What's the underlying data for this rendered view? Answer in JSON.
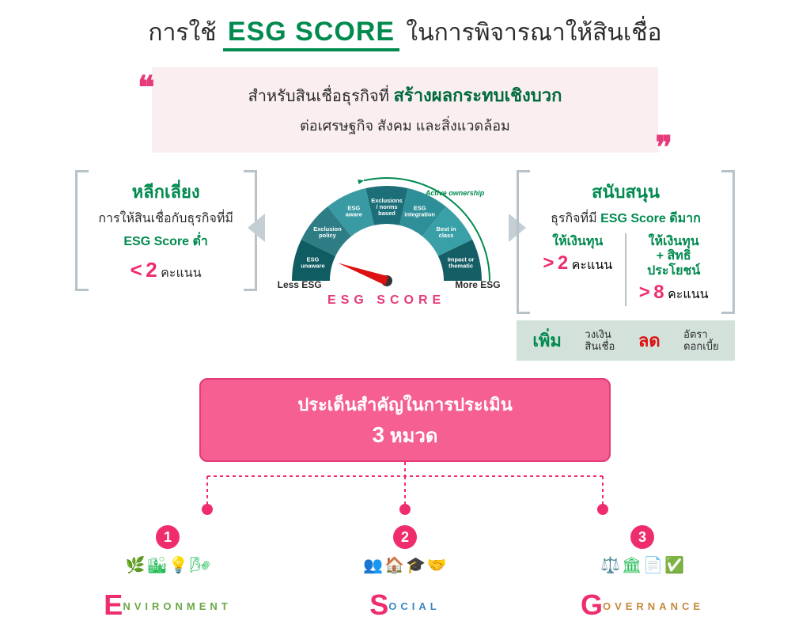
{
  "header": {
    "pre": "การใช้",
    "esg": "ESG SCORE",
    "post": "ในการพิจารณาให้สินเชื่อ",
    "esg_color": "#008a4e",
    "text_color": "#2b2b2b"
  },
  "quote": {
    "bg": "#fbeef0",
    "quote_color": "#e53b7a",
    "line1_pre": "สำหรับสินเชื่อธุรกิจที่",
    "line1_em": "สร้างผลกระทบเชิงบวก",
    "line2": "ต่อเศรษฐกิจ สังคม และสิ่งแวดล้อม"
  },
  "avoid_box": {
    "title": "หลีกเลี่ยง",
    "sub": "การให้สินเชื่อกับธุรกิจที่มี",
    "sub2": "ESG Score ต่ำ",
    "op": "<",
    "num": "2",
    "unit": "คะแนน"
  },
  "support_box": {
    "title": "สนับสนุน",
    "sub_pre": "ธุรกิจที่มี",
    "sub_em": "ESG Score ดีมาก",
    "col1_lbl": "ให้เงินทุน",
    "col1_op": ">",
    "col1_num": "2",
    "col1_unit": "คะแนน",
    "col2_lbl1": "ให้เงินทุน",
    "col2_lbl2": "+ สิทธิประโยชน์",
    "col2_op": ">",
    "col2_num": "8",
    "col2_unit": "คะแนน",
    "benefit": {
      "bg": "#d2e2db",
      "w1": "เพิ่ม",
      "w1_sub1": "วงเงิน",
      "w1_sub2": "สินเชื่อ",
      "w2": "ลด",
      "w2_sub1": "อัตรา",
      "w2_sub2": "ดอกเบี้ย"
    }
  },
  "gauge": {
    "caption": "ESG SCORE",
    "low_label": "Less ESG",
    "high_label": "More ESG",
    "active_label": "Active ownership",
    "needle_angle_deg": 20,
    "needle_color": "#d11",
    "segments": [
      {
        "label1": "ESG",
        "label2": "unaware",
        "color": "#0f5c63"
      },
      {
        "label1": "Exclusion",
        "label2": "policy",
        "color": "#2e7d85"
      },
      {
        "label1": "ESG",
        "label2": "aware",
        "color": "#3a9aa3"
      },
      {
        "label1": "Exclusions",
        "label2": "/ norms",
        "label3": "based",
        "color": "#1c6f78"
      },
      {
        "label1": "ESG",
        "label2": "integration",
        "color": "#2f8f98"
      },
      {
        "label1": "Best in",
        "label2": "class",
        "color": "#3aa0a8"
      },
      {
        "label1": "Impact or",
        "label2": "thematic",
        "color": "#145e66"
      }
    ]
  },
  "banner": {
    "bg": "#f55f92",
    "border": "#e53b7a",
    "line1": "ประเด็นสำคัญในการประเมิน",
    "count": "3",
    "unit": "หมวด"
  },
  "tree": {
    "line_color": "#ef2d6d",
    "dot_color": "#ef2d6d"
  },
  "categories": [
    {
      "n": "1",
      "big": "E",
      "rest": "NVIRONMENT",
      "rest_color": "#6aa845"
    },
    {
      "n": "2",
      "big": "S",
      "rest": "OCIAL",
      "rest_color": "#3b88c4"
    },
    {
      "n": "3",
      "big": "G",
      "rest": "OVERNANCE",
      "rest_color": "#c48a3b"
    }
  ]
}
